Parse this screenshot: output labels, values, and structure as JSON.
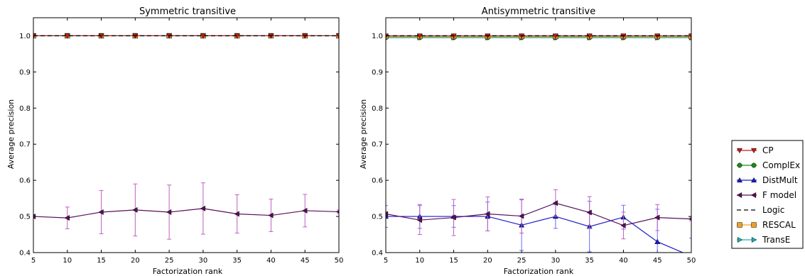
{
  "chart_data": [
    {
      "type": "line",
      "title": "Symmetric transitive",
      "xlabel": "Factorization rank",
      "ylabel": "Average precision",
      "xlim": [
        5,
        50
      ],
      "ylim": [
        0.4,
        1.05
      ],
      "xticks": [
        5,
        10,
        15,
        20,
        25,
        30,
        35,
        40,
        45,
        50
      ],
      "yticks": [
        0.4,
        0.5,
        0.6,
        0.7,
        0.8,
        0.9,
        1.0
      ],
      "x": [
        5,
        10,
        15,
        20,
        25,
        30,
        35,
        40,
        45,
        50
      ],
      "grid": false,
      "series": [
        {
          "name": "CP",
          "values": [
            1.0,
            1.0,
            1.0,
            1.0,
            1.0,
            1.0,
            1.0,
            1.0,
            1.0,
            1.0
          ]
        },
        {
          "name": "ComplEx",
          "values": [
            1.0,
            1.0,
            1.0,
            1.0,
            1.0,
            1.0,
            1.0,
            1.0,
            1.0,
            1.0
          ]
        },
        {
          "name": "DistMult",
          "values": [
            1.0,
            1.0,
            1.0,
            1.0,
            1.0,
            1.0,
            1.0,
            1.0,
            1.0,
            1.0
          ]
        },
        {
          "name": "F model",
          "values": [
            0.5,
            0.496,
            0.512,
            0.518,
            0.512,
            0.522,
            0.507,
            0.503,
            0.516,
            0.513
          ],
          "errors": [
            0.005,
            0.03,
            0.06,
            0.072,
            0.075,
            0.071,
            0.053,
            0.045,
            0.045,
            0.005
          ]
        },
        {
          "name": "Logic",
          "values": [
            1.0,
            1.0,
            1.0,
            1.0,
            1.0,
            1.0,
            1.0,
            1.0,
            1.0,
            1.0
          ]
        },
        {
          "name": "RESCAL",
          "values": [
            1.0,
            1.0,
            1.0,
            1.0,
            1.0,
            1.0,
            1.0,
            1.0,
            1.0,
            1.0
          ]
        },
        {
          "name": "TransE",
          "values": [
            1.0,
            1.0,
            1.0,
            1.0,
            1.0,
            1.0,
            1.0,
            1.0,
            1.0,
            1.0
          ]
        }
      ]
    },
    {
      "type": "line",
      "title": "Antisymmetric transitive",
      "xlabel": "Factorization rank",
      "ylabel": "Average precision",
      "xlim": [
        5,
        50
      ],
      "ylim": [
        0.4,
        1.05
      ],
      "xticks": [
        5,
        10,
        15,
        20,
        25,
        30,
        35,
        40,
        45,
        50
      ],
      "yticks": [
        0.4,
        0.5,
        0.6,
        0.7,
        0.8,
        0.9,
        1.0
      ],
      "x": [
        5,
        10,
        15,
        20,
        25,
        30,
        35,
        40,
        45,
        50
      ],
      "grid": false,
      "series": [
        {
          "name": "CP",
          "values": [
            1.0,
            1.0,
            1.0,
            1.0,
            1.0,
            1.0,
            1.0,
            1.0,
            1.0,
            1.0
          ]
        },
        {
          "name": "ComplEx",
          "values": [
            0.995,
            0.995,
            0.995,
            0.995,
            0.995,
            0.995,
            0.995,
            0.995,
            0.995,
            0.995
          ]
        },
        {
          "name": "DistMult",
          "values": [
            0.5,
            0.5,
            0.5,
            0.5,
            0.476,
            0.5,
            0.472,
            0.498,
            0.43,
            0.39
          ],
          "errors": [
            0.03,
            0.033,
            0.03,
            0.04,
            0.07,
            0.033,
            0.07,
            0.033,
            0.09,
            0.05
          ]
        },
        {
          "name": "F model",
          "values": [
            0.507,
            0.49,
            0.497,
            0.507,
            0.501,
            0.537,
            0.511,
            0.475,
            0.497,
            0.493
          ],
          "errors": [
            0.005,
            0.04,
            0.05,
            0.047,
            0.047,
            0.037,
            0.044,
            0.037,
            0.036,
            0.005
          ]
        },
        {
          "name": "Logic",
          "values": [
            1.0,
            1.0,
            1.0,
            1.0,
            1.0,
            1.0,
            1.0,
            1.0,
            1.0,
            1.0
          ]
        },
        {
          "name": "RESCAL",
          "values": [
            0.998,
            0.998,
            0.998,
            0.998,
            0.998,
            0.998,
            0.998,
            0.998,
            0.998,
            0.998
          ]
        },
        {
          "name": "TransE",
          "values": [
            0.995,
            0.995,
            0.995,
            0.995,
            0.995,
            0.995,
            0.995,
            0.995,
            0.995,
            0.995
          ]
        }
      ]
    }
  ],
  "legend": {
    "placement": "right",
    "entries": [
      {
        "name": "CP",
        "color": "#cc1a1a",
        "marker": "triangle-down",
        "linestyle": "solid"
      },
      {
        "name": "ComplEx",
        "color": "#1a8c1a",
        "marker": "circle",
        "linestyle": "solid"
      },
      {
        "name": "DistMult",
        "color": "#1a1acc",
        "marker": "triangle-up",
        "linestyle": "solid"
      },
      {
        "name": "F model",
        "color": "#5a0f5a",
        "marker": "triangle-left",
        "linestyle": "solid"
      },
      {
        "name": "Logic",
        "color": "#000000",
        "marker": "none",
        "linestyle": "dashed"
      },
      {
        "name": "RESCAL",
        "color": "#f0a020",
        "marker": "square",
        "linestyle": "solid"
      },
      {
        "name": "TransE",
        "color": "#20b2b2",
        "marker": "triangle-right",
        "linestyle": "solid"
      }
    ]
  },
  "colors": {
    "CP": "#cc1a1a",
    "ComplEx": "#1a8c1a",
    "DistMult": "#1a1acc",
    "F model": "#5a0f5a",
    "F model error": "#c060c0",
    "DistMult error": "#6a6aff",
    "Logic": "#000000",
    "RESCAL": "#f0a020",
    "TransE": "#20b2b2"
  }
}
